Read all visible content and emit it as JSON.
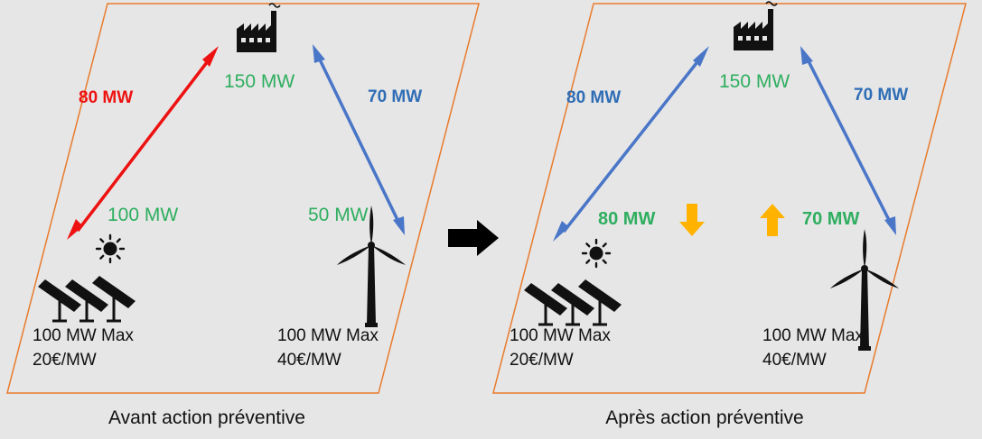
{
  "colors": {
    "panel_border": "#e87b2c",
    "background": "#e6e6e6",
    "congested_line": "#ee1111",
    "normal_line": "#4a76c8",
    "mw_green": "#2eae5f",
    "change_arrow": "#ffb300"
  },
  "panels": {
    "before": {
      "caption": "Avant action préventive",
      "load": "150 MW",
      "solar_output": "100 MW",
      "wind_output": "50 MW",
      "flow_left": "80 MW",
      "flow_right": "70 MW",
      "solar_capacity": "100 MW Max",
      "solar_cost": "20€/MW",
      "wind_capacity": "100 MW Max",
      "wind_cost": "40€/MW"
    },
    "after": {
      "caption": "Après action préventive",
      "load": "150 MW",
      "flow_left": "80 MW",
      "flow_right": "70 MW",
      "solar_output": "80 MW",
      "wind_output": "70 MW",
      "solar_capacity": "100 MW Max",
      "solar_cost": "20€/MW",
      "wind_capacity": "100 MW Max",
      "wind_cost": "40€/MW"
    }
  },
  "icons": {
    "factory": "factory-icon",
    "sun": "sun-icon",
    "solar_panels": "solar-panel-icon",
    "wind_turbine": "wind-turbine-icon",
    "transition": "arrow-right-icon",
    "decrease": "arrow-down-icon",
    "increase": "arrow-up-icon"
  }
}
